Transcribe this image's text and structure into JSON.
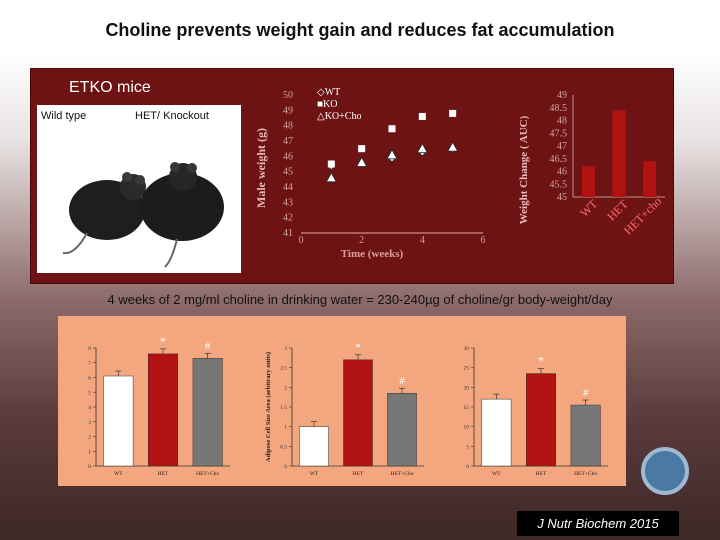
{
  "slide": {
    "title": "Choline prevents weight gain and reduces fat accumulation",
    "panel_heading": "ETKO mice",
    "caption": "4 weeks of  2 mg/ml  choline in drinking water = 230-240µg of choline/gr body-weight/day",
    "citation": "J Nutr Biochem 2015",
    "photo_labels": {
      "left": "Wild type",
      "right": "HET/ Knockout"
    }
  },
  "colors": {
    "panel": "#6e1313",
    "bottom_panel": "#f4a77e",
    "bar_dark": "#b31212",
    "bar_grey": "#777777"
  },
  "chart_data": [
    {
      "type": "scatter",
      "xlabel": "Time (weeks)",
      "ylabel": "Male weight  (g)",
      "xlim": [
        0,
        6
      ],
      "ylim": [
        41,
        50
      ],
      "xticks": [
        "0",
        "2",
        "4",
        "6"
      ],
      "yticks": [
        "50",
        "49",
        "48",
        "47",
        "46",
        "45",
        "44",
        "43",
        "42",
        "41"
      ],
      "legend": [
        "WT",
        "KO",
        "KO+Cho"
      ],
      "series": [
        {
          "name": "WT",
          "x": [
            1,
            2,
            3,
            4,
            5
          ],
          "y": [
            45.4,
            45.6,
            45.9,
            46.3,
            46.5
          ]
        },
        {
          "name": "KO",
          "x": [
            1,
            2,
            3,
            4,
            5
          ],
          "y": [
            45.5,
            46.5,
            47.8,
            48.6,
            48.8
          ]
        },
        {
          "name": "KO+Cho",
          "x": [
            1,
            2,
            3,
            4,
            5
          ],
          "y": [
            44.6,
            45.6,
            46.1,
            46.5,
            46.6
          ]
        }
      ]
    },
    {
      "type": "bar",
      "ylabel": "Weight  Change ( AUC)",
      "ylim": [
        45,
        49
      ],
      "yticks": [
        "49",
        "48.5",
        "48",
        "47.5",
        "47",
        "46.5",
        "46",
        "45.5",
        "45"
      ],
      "categories": [
        "WT",
        "HET",
        "HET+cho"
      ],
      "values": [
        46.2,
        48.4,
        46.4
      ]
    },
    {
      "type": "bar",
      "ylim": [
        0,
        8
      ],
      "yticks": [
        "0",
        "1",
        "2",
        "3",
        "4",
        "5",
        "6",
        "7",
        "8"
      ],
      "categories": [
        "WT",
        "HET",
        "HET+Cho"
      ],
      "values": [
        6.1,
        7.6,
        7.3
      ],
      "annotations": [
        "*",
        "#"
      ]
    },
    {
      "type": "bar",
      "ylabel": "Adipose Cell Size Area (arbitrary units)",
      "ylim": [
        0,
        3
      ],
      "yticks": [
        "0",
        "0.5",
        "1",
        "1.5",
        "2",
        "2.5",
        "3"
      ],
      "categories": [
        "WT",
        "HET",
        "HET+Cho"
      ],
      "values": [
        1.0,
        2.7,
        1.85
      ],
      "annotations": [
        "*",
        "#"
      ]
    },
    {
      "type": "bar",
      "ylim": [
        0,
        30
      ],
      "yticks": [
        "0",
        "5",
        "10",
        "15",
        "20",
        "25",
        "30"
      ],
      "categories": [
        "WT",
        "HET",
        "HET+Cho"
      ],
      "values": [
        17,
        23.5,
        15.5
      ],
      "annotations": [
        "*",
        "#"
      ]
    }
  ]
}
